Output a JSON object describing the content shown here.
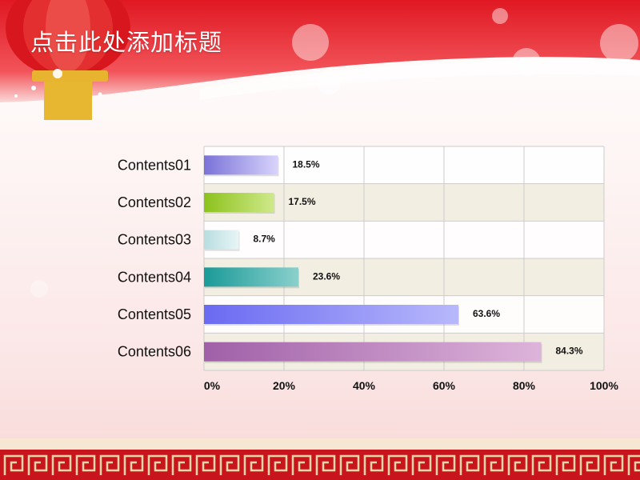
{
  "slide": {
    "title": "点击此处添加标题"
  },
  "colors": {
    "header_red": "#e8202a",
    "footer_red": "#c8141c",
    "gold": "#e8b430",
    "grid_line": "#cccccc",
    "row_shade": "#f1ecdf"
  },
  "chart_data": {
    "type": "bar",
    "orientation": "horizontal",
    "categories": [
      "Contents01",
      "Contents02",
      "Contents03",
      "Contents04",
      "Contents05",
      "Contents06"
    ],
    "values": [
      18.5,
      17.5,
      8.7,
      23.6,
      63.6,
      84.3
    ],
    "data_labels": [
      "18.5%",
      "17.5%",
      "8.7%",
      "23.6%",
      "63.6%",
      "84.3%"
    ],
    "bar_colors": [
      [
        "#7a72d8",
        "#d8d4fb"
      ],
      [
        "#8cc21c",
        "#cfe98a"
      ],
      [
        "#b8dde0",
        "#e8f5f6"
      ],
      [
        "#1a9a98",
        "#8ad0cc"
      ],
      [
        "#6a6af2",
        "#b8b8fb"
      ],
      [
        "#a060a8",
        "#ddb4da"
      ]
    ],
    "xlim": [
      0,
      100
    ],
    "xticks": [
      "0%",
      "20%",
      "40%",
      "60%",
      "80%",
      "100%"
    ],
    "tick_values": [
      0,
      20,
      40,
      60,
      80,
      100
    ],
    "grid": true,
    "title": "",
    "xlabel": "",
    "ylabel": ""
  }
}
